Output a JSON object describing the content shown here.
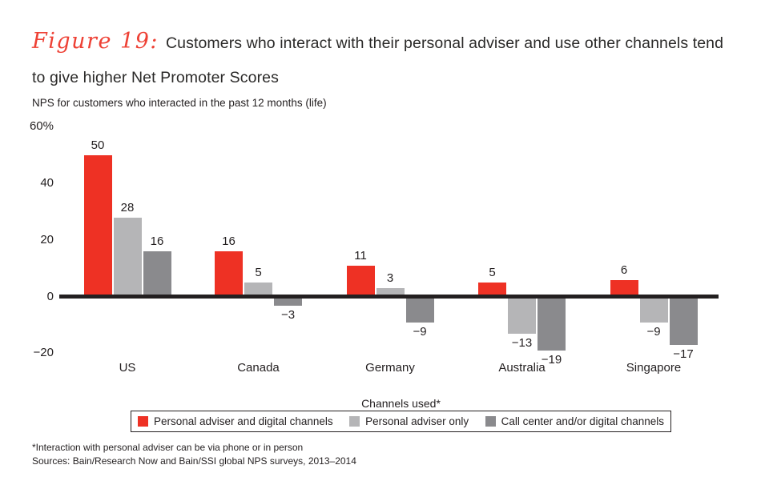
{
  "figure": {
    "label": "Figure 19:",
    "title": "Customers who interact with their personal adviser and use other channels tend to give higher Net Promoter Scores",
    "subtitle": "NPS for customers who interacted in the past 12 months (life)"
  },
  "chart_data": {
    "type": "bar",
    "categories": [
      "US",
      "Canada",
      "Germany",
      "Australia",
      "Singapore"
    ],
    "series": [
      {
        "name": "Personal adviser and digital channels",
        "color": "#EE3124",
        "values": [
          50,
          16,
          11,
          5,
          6
        ]
      },
      {
        "name": "Personal adviser only",
        "color": "#B5B5B7",
        "values": [
          28,
          5,
          3,
          -13,
          -9
        ]
      },
      {
        "name": "Call center and/or digital channels",
        "color": "#8A8A8D",
        "values": [
          16,
          -3,
          -9,
          -19,
          -17
        ]
      }
    ],
    "y_axis": {
      "min": -20,
      "max": 60,
      "ticks": [
        60,
        40,
        20,
        0,
        -20
      ],
      "tick_labels": [
        "60%",
        "40",
        "20",
        "0",
        "−20"
      ]
    },
    "xlabel": "Channels used*",
    "legend_position": "bottom-boxed",
    "grid": false,
    "baseline_color": "#231F20"
  },
  "footnotes": [
    "*Interaction with personal adviser can be via phone or in person",
    "Sources: Bain/Research Now and Bain/SSI global NPS surveys, 2013–2014"
  ]
}
